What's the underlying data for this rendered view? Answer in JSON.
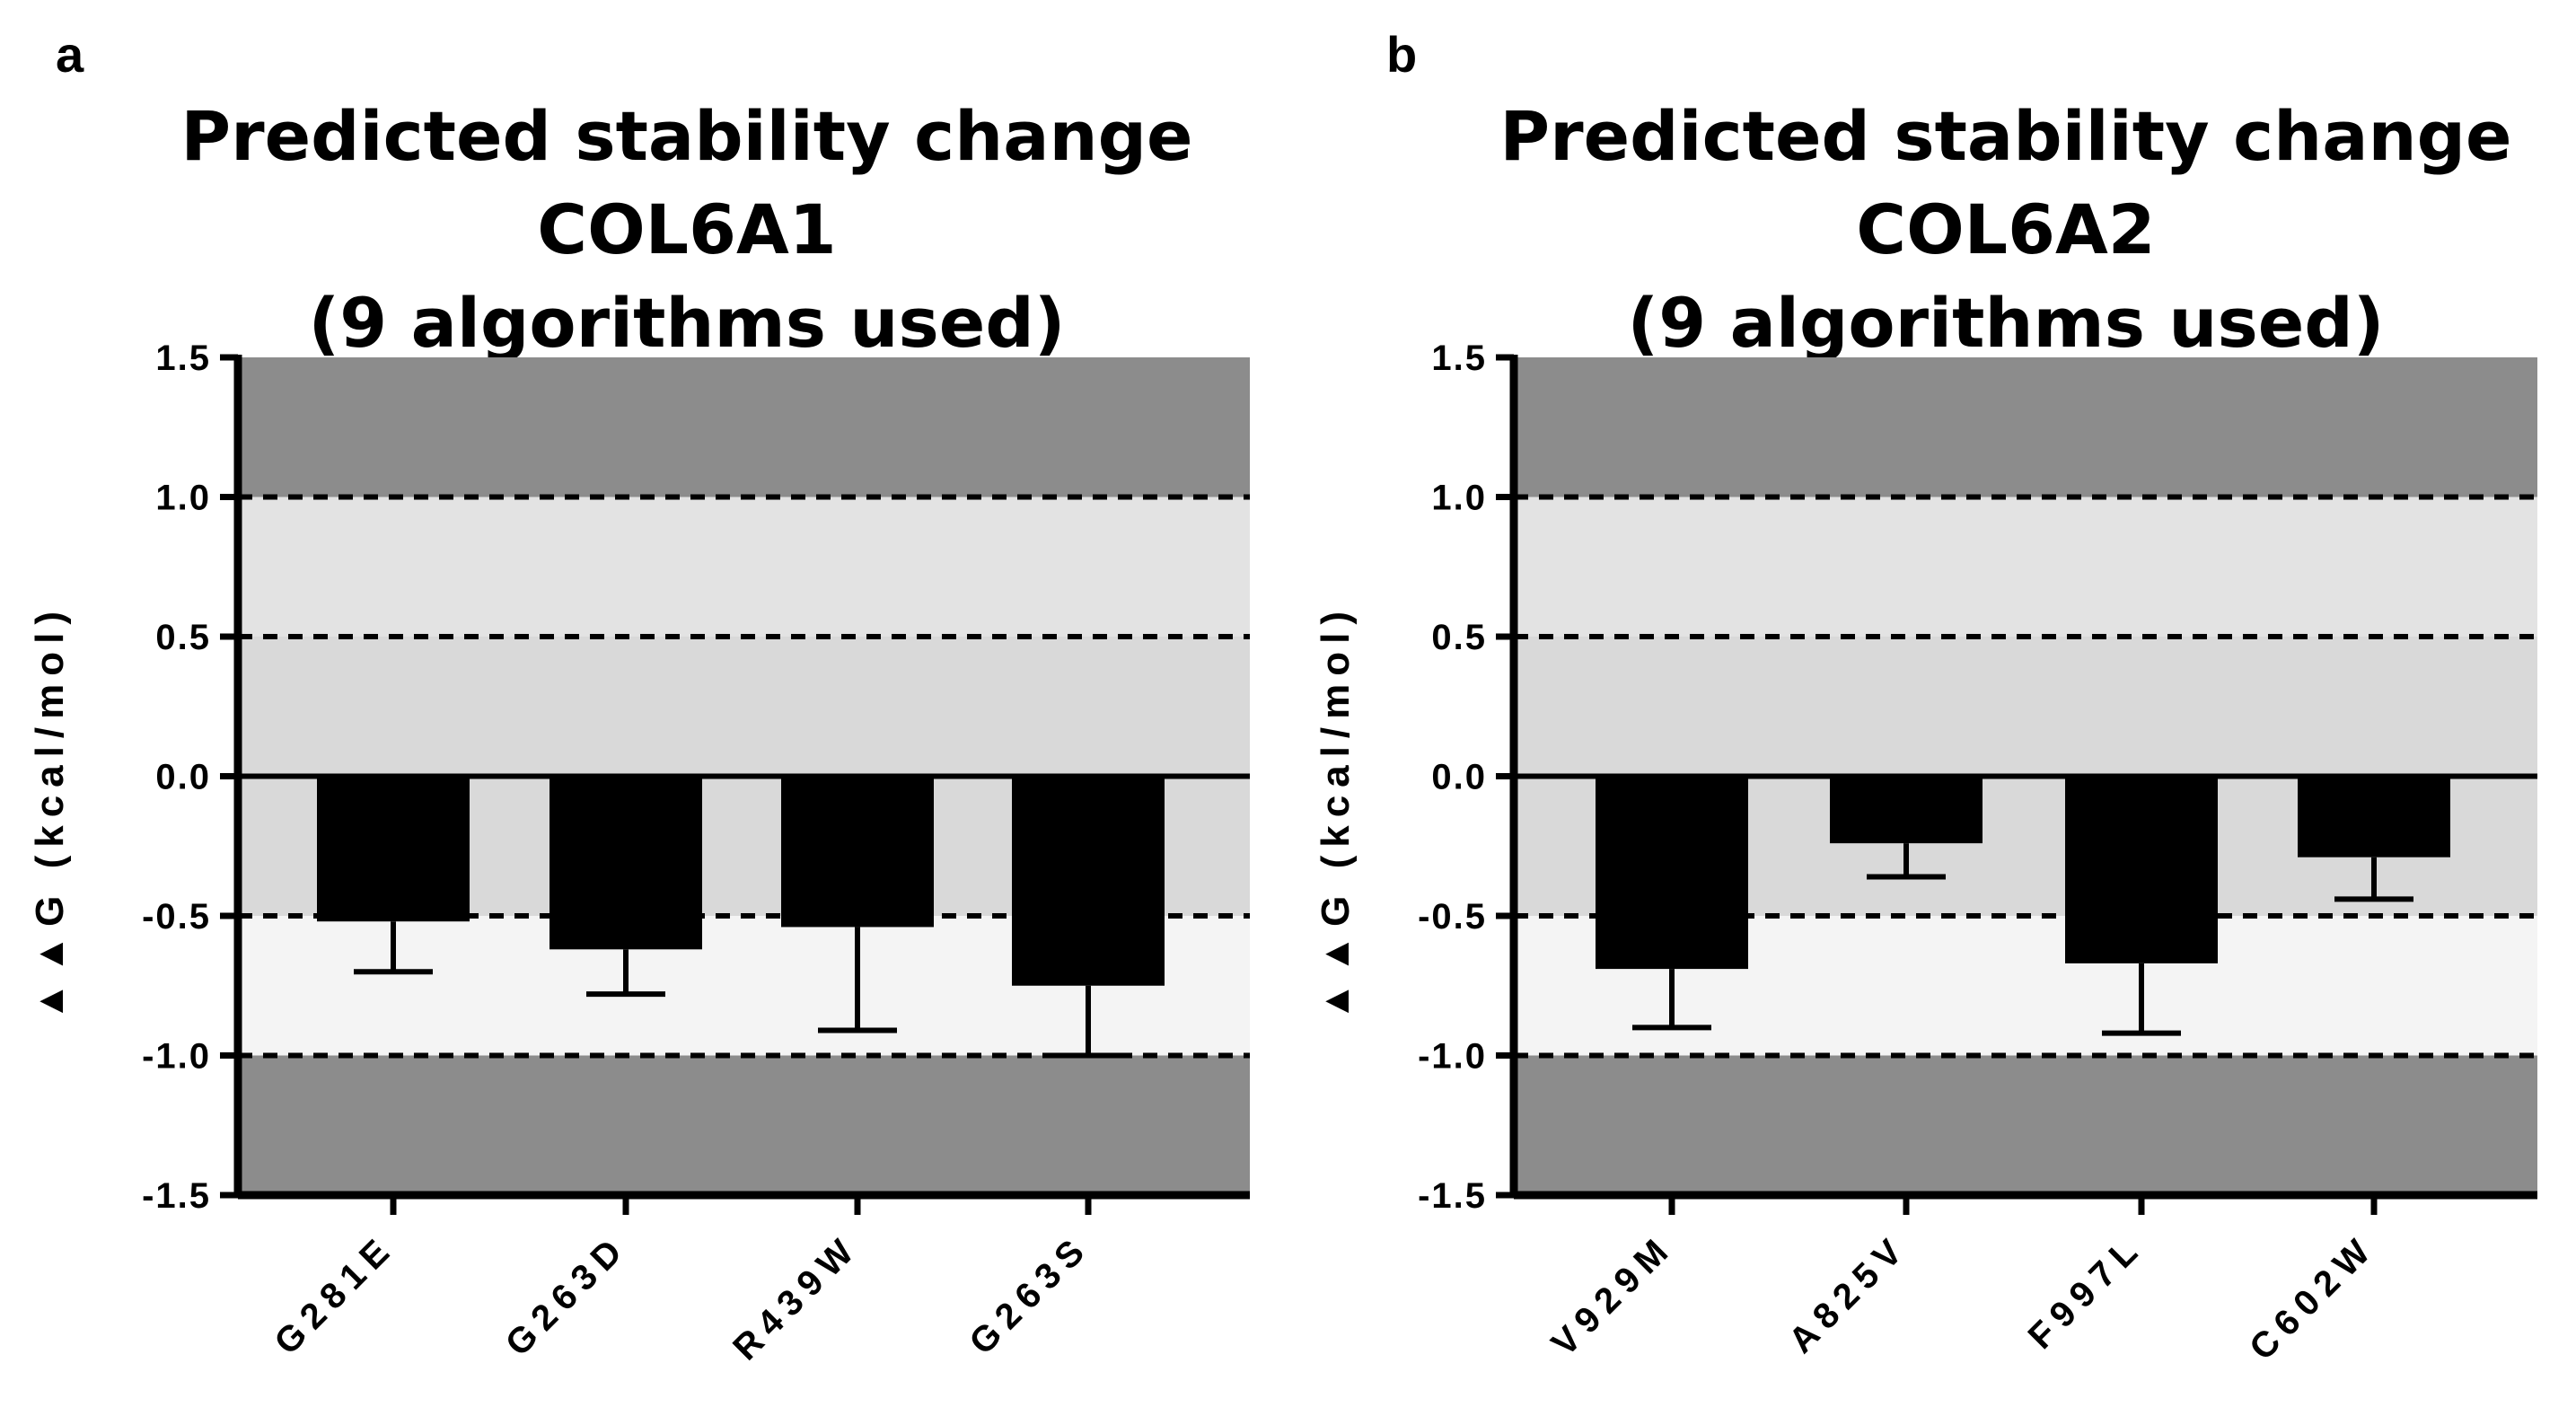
{
  "figure": {
    "colors": {
      "band_outer": "#8c8c8c",
      "band_mid": "#e3e3e3",
      "band_inner": "#d9d9d9",
      "band_neg_mid": "#f4f4f4",
      "bar": "#000000",
      "axis": "#000000"
    }
  },
  "chart_data": [
    {
      "panel_letter": "a",
      "type": "bar",
      "title_lines": [
        "Predicted stability change COL6A1",
        "(9 algorithms used)"
      ],
      "ylabel": "▲▲G  (kcal/mol)",
      "ylim": [
        -1.5,
        1.5
      ],
      "yticks": [
        1.5,
        1.0,
        0.5,
        0.0,
        -0.5,
        -1.0,
        -1.5
      ],
      "ytick_labels": [
        "1.5",
        "1.0",
        "0.5",
        "0.0",
        "-0.5",
        "-1.0",
        "-1.5"
      ],
      "dashed_lines": [
        1.0,
        0.5,
        -0.5,
        -1.0
      ],
      "bands": [
        {
          "from": 1.0,
          "to": 1.5,
          "shade": "band_outer"
        },
        {
          "from": 0.5,
          "to": 1.0,
          "shade": "band_mid"
        },
        {
          "from": -0.5,
          "to": 0.5,
          "shade": "band_inner"
        },
        {
          "from": -1.0,
          "to": -0.5,
          "shade": "band_neg_mid"
        },
        {
          "from": -1.5,
          "to": -1.0,
          "shade": "band_outer"
        }
      ],
      "categories": [
        "G281E",
        "G263D",
        "R439W",
        "G263S"
      ],
      "values": [
        -0.52,
        -0.62,
        -0.54,
        -0.75
      ],
      "error_low": [
        -0.7,
        -0.78,
        -0.91,
        -1.0
      ]
    },
    {
      "panel_letter": "b",
      "type": "bar",
      "title_lines": [
        "Predicted stability change COL6A2",
        "(9 algorithms used)"
      ],
      "ylabel": "▲▲G  (kcal/mol)",
      "ylim": [
        -1.5,
        1.5
      ],
      "yticks": [
        1.5,
        1.0,
        0.5,
        0.0,
        -0.5,
        -1.0,
        -1.5
      ],
      "ytick_labels": [
        "1.5",
        "1.0",
        "0.5",
        "0.0",
        "-0.5",
        "-1.0",
        "-1.5"
      ],
      "dashed_lines": [
        1.0,
        0.5,
        -0.5,
        -1.0
      ],
      "bands": [
        {
          "from": 1.0,
          "to": 1.5,
          "shade": "band_outer"
        },
        {
          "from": 0.5,
          "to": 1.0,
          "shade": "band_mid"
        },
        {
          "from": -0.5,
          "to": 0.5,
          "shade": "band_inner"
        },
        {
          "from": -1.0,
          "to": -0.5,
          "shade": "band_neg_mid"
        },
        {
          "from": -1.5,
          "to": -1.0,
          "shade": "band_outer"
        }
      ],
      "categories": [
        "V929M",
        "A825V",
        "F997L",
        "C602W"
      ],
      "values": [
        -0.69,
        -0.24,
        -0.67,
        -0.29
      ],
      "error_low": [
        -0.9,
        -0.36,
        -0.92,
        -0.44
      ]
    }
  ]
}
